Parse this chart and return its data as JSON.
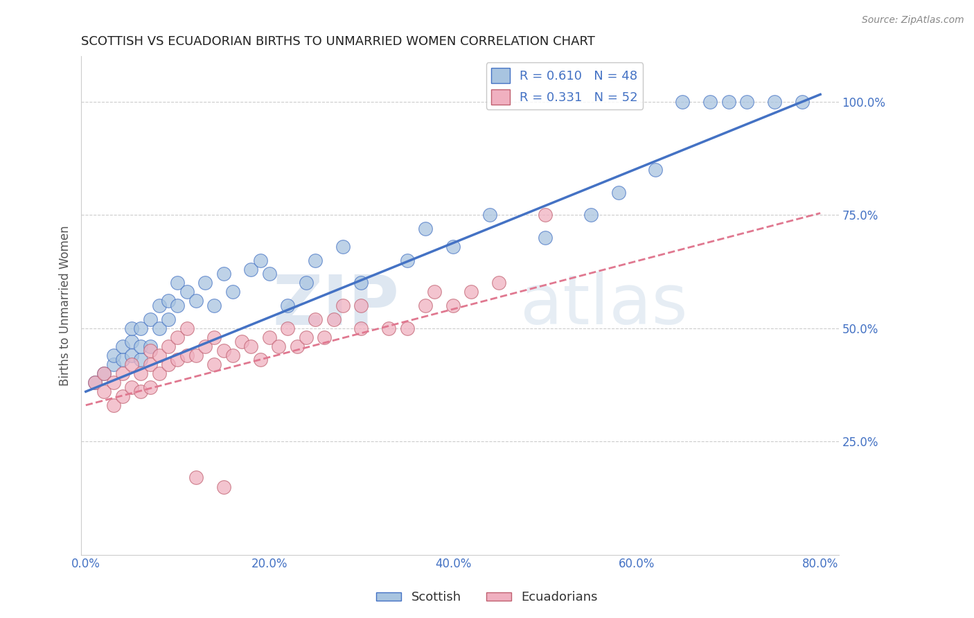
{
  "title": "SCOTTISH VS ECUADORIAN BIRTHS TO UNMARRIED WOMEN CORRELATION CHART",
  "source": "Source: ZipAtlas.com",
  "ylabel": "Births to Unmarried Women",
  "xlim": [
    -0.005,
    0.82
  ],
  "ylim": [
    0.0,
    1.1
  ],
  "xticks": [
    0.0,
    0.2,
    0.4,
    0.6,
    0.8
  ],
  "xtick_labels": [
    "0.0%",
    "20.0%",
    "40.0%",
    "60.0%",
    "80.0%"
  ],
  "yticks": [
    0.25,
    0.5,
    0.75,
    1.0
  ],
  "ytick_labels": [
    "25.0%",
    "50.0%",
    "75.0%",
    "100.0%"
  ],
  "legend_label1_r": "0.610",
  "legend_label1_n": "48",
  "legend_label2_r": "0.331",
  "legend_label2_n": "52",
  "watermark": "ZIPatlas",
  "footer_label1": "Scottish",
  "footer_label2": "Ecuadorians",
  "tick_color": "#4472C4",
  "title_color": "#222222",
  "grid_color": "#CCCCCC",
  "blue_scatter_color": "#A8C4E0",
  "pink_scatter_color": "#F0B0C0",
  "blue_line_color": "#4472C4",
  "pink_line_color": "#E07890",
  "watermark_color": "#D0DFF0",
  "scottish_x": [
    0.01,
    0.02,
    0.03,
    0.03,
    0.04,
    0.04,
    0.05,
    0.05,
    0.05,
    0.06,
    0.06,
    0.06,
    0.07,
    0.07,
    0.08,
    0.08,
    0.09,
    0.09,
    0.1,
    0.1,
    0.11,
    0.12,
    0.13,
    0.14,
    0.15,
    0.16,
    0.18,
    0.19,
    0.2,
    0.22,
    0.24,
    0.25,
    0.28,
    0.3,
    0.35,
    0.37,
    0.4,
    0.44,
    0.5,
    0.55,
    0.58,
    0.62,
    0.65,
    0.68,
    0.7,
    0.72,
    0.75,
    0.78
  ],
  "scottish_y": [
    0.38,
    0.4,
    0.42,
    0.44,
    0.43,
    0.46,
    0.44,
    0.47,
    0.5,
    0.43,
    0.46,
    0.5,
    0.46,
    0.52,
    0.5,
    0.55,
    0.52,
    0.56,
    0.55,
    0.6,
    0.58,
    0.56,
    0.6,
    0.55,
    0.62,
    0.58,
    0.63,
    0.65,
    0.62,
    0.55,
    0.6,
    0.65,
    0.68,
    0.6,
    0.65,
    0.72,
    0.68,
    0.75,
    0.7,
    0.75,
    0.8,
    0.85,
    1.0,
    1.0,
    1.0,
    1.0,
    1.0,
    1.0
  ],
  "ecuadorian_x": [
    0.01,
    0.02,
    0.02,
    0.03,
    0.03,
    0.04,
    0.04,
    0.05,
    0.05,
    0.06,
    0.06,
    0.07,
    0.07,
    0.07,
    0.08,
    0.08,
    0.09,
    0.09,
    0.1,
    0.1,
    0.11,
    0.11,
    0.12,
    0.13,
    0.14,
    0.14,
    0.15,
    0.16,
    0.17,
    0.18,
    0.19,
    0.2,
    0.21,
    0.22,
    0.23,
    0.24,
    0.25,
    0.26,
    0.27,
    0.28,
    0.3,
    0.3,
    0.33,
    0.35,
    0.37,
    0.38,
    0.4,
    0.42,
    0.45,
    0.5,
    0.12,
    0.15
  ],
  "ecuadorian_y": [
    0.38,
    0.36,
    0.4,
    0.33,
    0.38,
    0.35,
    0.4,
    0.37,
    0.42,
    0.36,
    0.4,
    0.37,
    0.42,
    0.45,
    0.4,
    0.44,
    0.42,
    0.46,
    0.43,
    0.48,
    0.44,
    0.5,
    0.44,
    0.46,
    0.42,
    0.48,
    0.45,
    0.44,
    0.47,
    0.46,
    0.43,
    0.48,
    0.46,
    0.5,
    0.46,
    0.48,
    0.52,
    0.48,
    0.52,
    0.55,
    0.5,
    0.55,
    0.5,
    0.5,
    0.55,
    0.58,
    0.55,
    0.58,
    0.6,
    0.75,
    0.17,
    0.15
  ]
}
